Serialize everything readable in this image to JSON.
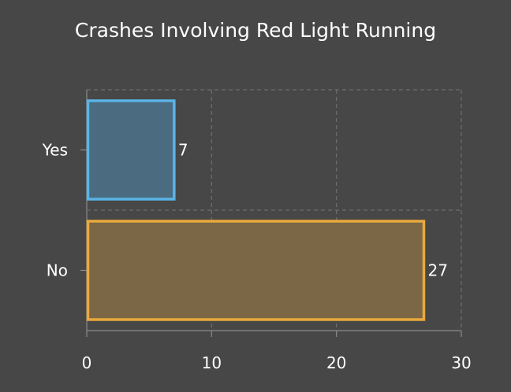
{
  "chart_data": {
    "type": "bar",
    "orientation": "horizontal",
    "title": "Crashes Involving Red Light Running",
    "xlabel": "",
    "ylabel": "",
    "categories": [
      "Yes",
      "No"
    ],
    "values": [
      7,
      27
    ],
    "bar_colors": {
      "Yes": {
        "fill": "#4b6b80",
        "stroke": "#5ab4e6"
      },
      "No": {
        "fill": "#7b6646",
        "stroke": "#eaa93c"
      }
    },
    "xlim": [
      0,
      30
    ],
    "xticks": [
      0,
      10,
      20,
      30
    ],
    "grid": true,
    "legend": "none",
    "data_labels": true
  },
  "colors": {
    "background": "#474747",
    "text": "#ffffff",
    "grid": "#6e6e6e",
    "axis": "#8a8a8a"
  }
}
